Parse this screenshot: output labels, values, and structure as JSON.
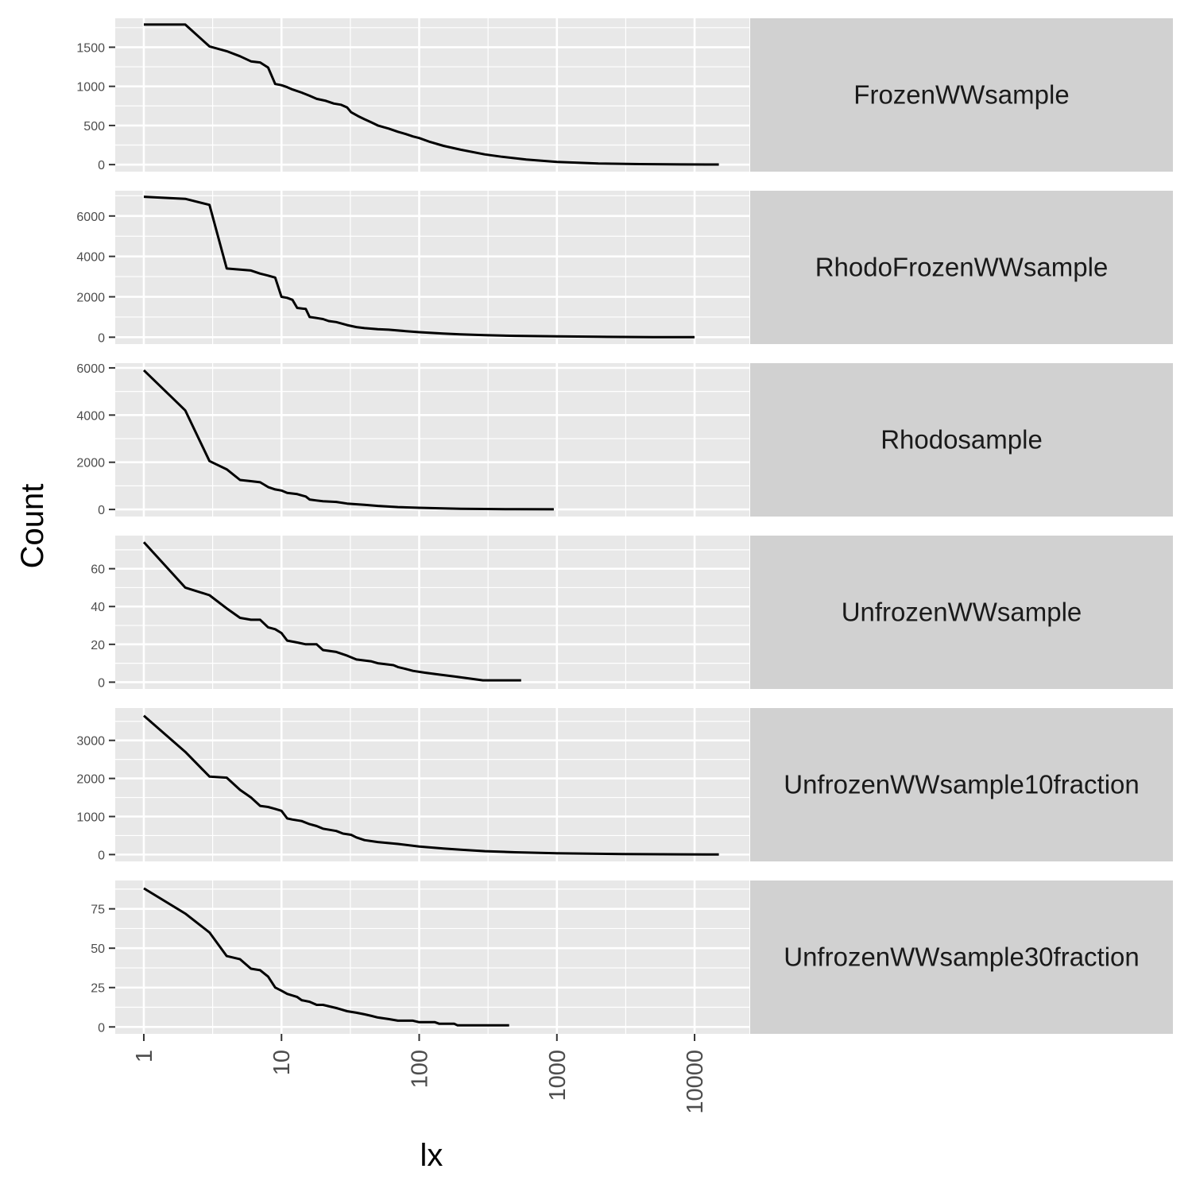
{
  "chart_data": {
    "type": "line",
    "xlabel": "lx",
    "ylabel": "Count",
    "x_scale": "log10",
    "xlim": [
      0.62,
      25000
    ],
    "x_ticks": [
      1,
      10,
      100,
      1000,
      10000
    ],
    "x_tick_labels": [
      "1",
      "10",
      "100",
      "1000",
      "10000"
    ],
    "grid": true,
    "line_color": "#000000",
    "panel_bg": "#e8e8e8",
    "strip_bg": "#d1d1d1",
    "grid_color": "#ffffff",
    "panels": [
      {
        "strip": "FrozenWWsample",
        "ylim": [
          -90,
          1870
        ],
        "y_ticks": [
          0,
          500,
          1000,
          1500
        ],
        "y_tick_labels": [
          "0",
          "500",
          "1000",
          "1500"
        ],
        "points": [
          [
            1,
            1790
          ],
          [
            2,
            1790
          ],
          [
            3,
            1510
          ],
          [
            4,
            1450
          ],
          [
            5,
            1385
          ],
          [
            6,
            1320
          ],
          [
            7,
            1305
          ],
          [
            8,
            1240
          ],
          [
            9,
            1030
          ],
          [
            10,
            1015
          ],
          [
            11,
            990
          ],
          [
            12,
            960
          ],
          [
            14,
            920
          ],
          [
            16,
            880
          ],
          [
            18,
            840
          ],
          [
            21,
            815
          ],
          [
            24,
            780
          ],
          [
            27,
            765
          ],
          [
            30,
            730
          ],
          [
            32,
            670
          ],
          [
            36,
            620
          ],
          [
            40,
            580
          ],
          [
            45,
            540
          ],
          [
            50,
            500
          ],
          [
            60,
            460
          ],
          [
            70,
            420
          ],
          [
            80,
            390
          ],
          [
            90,
            360
          ],
          [
            100,
            340
          ],
          [
            120,
            290
          ],
          [
            150,
            240
          ],
          [
            200,
            190
          ],
          [
            300,
            130
          ],
          [
            400,
            100
          ],
          [
            600,
            65
          ],
          [
            1000,
            35
          ],
          [
            2000,
            15
          ],
          [
            4000,
            6
          ],
          [
            8000,
            2
          ],
          [
            15000,
            1
          ]
        ]
      },
      {
        "strip": "RhodoFrozenWWsample",
        "ylim": [
          -340,
          7250
        ],
        "y_ticks": [
          0,
          2000,
          4000,
          6000
        ],
        "y_tick_labels": [
          "0",
          "2000",
          "4000",
          "6000"
        ],
        "points": [
          [
            1,
            6950
          ],
          [
            2,
            6850
          ],
          [
            3,
            6550
          ],
          [
            4,
            3400
          ],
          [
            5,
            3350
          ],
          [
            6,
            3300
          ],
          [
            7,
            3150
          ],
          [
            8,
            3050
          ],
          [
            9,
            2950
          ],
          [
            10,
            2000
          ],
          [
            11,
            1950
          ],
          [
            12,
            1850
          ],
          [
            13,
            1450
          ],
          [
            15,
            1400
          ],
          [
            16,
            1000
          ],
          [
            18,
            950
          ],
          [
            20,
            900
          ],
          [
            22,
            800
          ],
          [
            25,
            750
          ],
          [
            30,
            600
          ],
          [
            35,
            500
          ],
          [
            40,
            450
          ],
          [
            50,
            400
          ],
          [
            60,
            370
          ],
          [
            80,
            300
          ],
          [
            100,
            250
          ],
          [
            150,
            180
          ],
          [
            200,
            140
          ],
          [
            300,
            100
          ],
          [
            500,
            70
          ],
          [
            1000,
            40
          ],
          [
            2000,
            20
          ],
          [
            5000,
            8
          ],
          [
            10000,
            2
          ]
        ]
      },
      {
        "strip": "Rhodosample",
        "ylim": [
          -300,
          6200
        ],
        "y_ticks": [
          0,
          2000,
          4000,
          6000
        ],
        "y_tick_labels": [
          "0",
          "2000",
          "4000",
          "6000"
        ],
        "points": [
          [
            1,
            5900
          ],
          [
            2,
            4200
          ],
          [
            3,
            2050
          ],
          [
            4,
            1700
          ],
          [
            5,
            1250
          ],
          [
            6,
            1200
          ],
          [
            7,
            1150
          ],
          [
            8,
            950
          ],
          [
            9,
            850
          ],
          [
            10,
            800
          ],
          [
            11,
            700
          ],
          [
            13,
            650
          ],
          [
            15,
            550
          ],
          [
            16,
            420
          ],
          [
            18,
            380
          ],
          [
            20,
            350
          ],
          [
            25,
            320
          ],
          [
            30,
            250
          ],
          [
            40,
            200
          ],
          [
            50,
            150
          ],
          [
            70,
            100
          ],
          [
            100,
            70
          ],
          [
            150,
            45
          ],
          [
            200,
            30
          ],
          [
            300,
            20
          ],
          [
            500,
            10
          ],
          [
            950,
            5
          ]
        ]
      },
      {
        "strip": "UnfrozenWWsample",
        "ylim": [
          -3.6,
          77.5
        ],
        "y_ticks": [
          0,
          20,
          40,
          60
        ],
        "y_tick_labels": [
          "0",
          "20",
          "40",
          "60"
        ],
        "points": [
          [
            1,
            74
          ],
          [
            2,
            50
          ],
          [
            3,
            46
          ],
          [
            4,
            39
          ],
          [
            5,
            34
          ],
          [
            6,
            33
          ],
          [
            7,
            33
          ],
          [
            8,
            29
          ],
          [
            9,
            28
          ],
          [
            10,
            26
          ],
          [
            11,
            22
          ],
          [
            13,
            21
          ],
          [
            15,
            20
          ],
          [
            18,
            20
          ],
          [
            20,
            17
          ],
          [
            25,
            16
          ],
          [
            30,
            14
          ],
          [
            35,
            12
          ],
          [
            45,
            11
          ],
          [
            50,
            10
          ],
          [
            65,
            9
          ],
          [
            70,
            8
          ],
          [
            80,
            7
          ],
          [
            90,
            6
          ],
          [
            110,
            5
          ],
          [
            140,
            4
          ],
          [
            180,
            3
          ],
          [
            230,
            2
          ],
          [
            290,
            1
          ],
          [
            550,
            1
          ]
        ]
      },
      {
        "strip": "UnfrozenWWsample10fraction",
        "ylim": [
          -180,
          3850
        ],
        "y_ticks": [
          0,
          1000,
          2000,
          3000
        ],
        "y_tick_labels": [
          "0",
          "1000",
          "2000",
          "3000"
        ],
        "points": [
          [
            1,
            3650
          ],
          [
            2,
            2700
          ],
          [
            3,
            2050
          ],
          [
            4,
            2020
          ],
          [
            5,
            1700
          ],
          [
            6,
            1500
          ],
          [
            7,
            1280
          ],
          [
            8,
            1250
          ],
          [
            9,
            1200
          ],
          [
            10,
            1150
          ],
          [
            11,
            950
          ],
          [
            12,
            920
          ],
          [
            14,
            880
          ],
          [
            16,
            800
          ],
          [
            18,
            750
          ],
          [
            20,
            680
          ],
          [
            25,
            620
          ],
          [
            28,
            550
          ],
          [
            32,
            520
          ],
          [
            35,
            450
          ],
          [
            40,
            380
          ],
          [
            50,
            330
          ],
          [
            70,
            280
          ],
          [
            100,
            210
          ],
          [
            150,
            160
          ],
          [
            200,
            130
          ],
          [
            300,
            90
          ],
          [
            500,
            60
          ],
          [
            1000,
            35
          ],
          [
            3000,
            15
          ],
          [
            8000,
            5
          ],
          [
            15000,
            2
          ]
        ]
      },
      {
        "strip": "UnfrozenWWsample30fraction",
        "ylim": [
          -4.4,
          93
        ],
        "y_ticks": [
          0,
          25,
          50,
          75
        ],
        "y_tick_labels": [
          "0",
          "25",
          "50",
          "75"
        ],
        "points": [
          [
            1,
            88
          ],
          [
            2,
            72
          ],
          [
            3,
            60
          ],
          [
            4,
            45
          ],
          [
            5,
            43
          ],
          [
            6,
            37
          ],
          [
            7,
            36
          ],
          [
            8,
            32
          ],
          [
            9,
            25
          ],
          [
            10,
            23
          ],
          [
            11,
            21
          ],
          [
            13,
            19
          ],
          [
            14,
            17
          ],
          [
            16,
            16
          ],
          [
            18,
            14
          ],
          [
            20,
            14
          ],
          [
            25,
            12
          ],
          [
            30,
            10
          ],
          [
            35,
            9
          ],
          [
            40,
            8
          ],
          [
            45,
            7
          ],
          [
            50,
            6
          ],
          [
            60,
            5
          ],
          [
            70,
            4
          ],
          [
            90,
            4
          ],
          [
            100,
            3
          ],
          [
            130,
            3
          ],
          [
            140,
            2
          ],
          [
            180,
            2
          ],
          [
            190,
            1
          ],
          [
            450,
            1
          ]
        ]
      }
    ]
  }
}
